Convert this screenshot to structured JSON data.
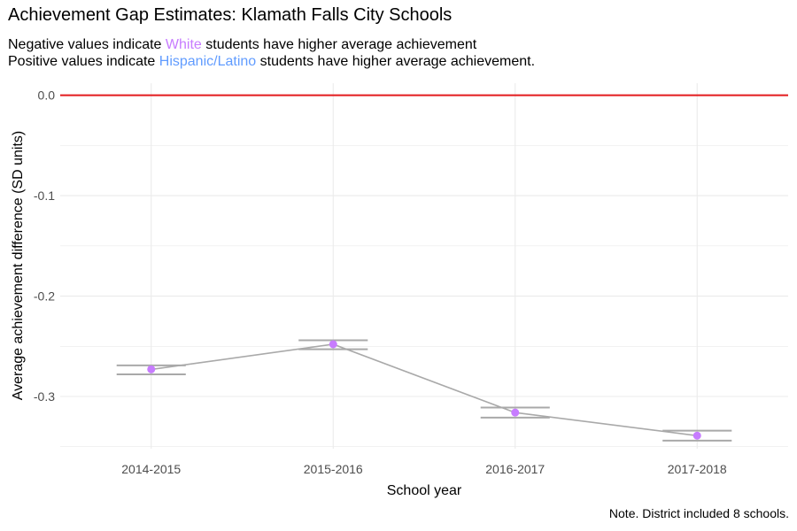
{
  "chart_data": {
    "type": "line",
    "title": "Achievement Gap Estimates: Klamath Falls City Schools",
    "subtitle": {
      "line1": {
        "before": "Negative values indicate ",
        "highlight": "White",
        "after": " students have higher average achievement"
      },
      "line2": {
        "before": "Positive values indicate ",
        "highlight": "Hispanic/Latino",
        "after": " students have higher average achievement."
      }
    },
    "xlabel": "School year",
    "ylabel": "Average achievement difference (SD units)",
    "categories": [
      "2014-2015",
      "2015-2016",
      "2016-2017",
      "2017-2018"
    ],
    "series": [
      {
        "values": [
          -0.273,
          -0.248,
          -0.316,
          -0.339
        ],
        "error_low": [
          -0.278,
          -0.253,
          -0.321,
          -0.344
        ],
        "error_high": [
          -0.269,
          -0.244,
          -0.311,
          -0.334
        ]
      }
    ],
    "yticks": [
      0.0,
      -0.1,
      -0.2,
      -0.3
    ],
    "ytick_labels": [
      "0.0",
      "-0.1",
      "-0.2",
      "-0.3"
    ],
    "ylim": [
      -0.352,
      0.012
    ],
    "reference_line": 0.0,
    "grid": true,
    "legend": "none",
    "note": "Note. District included 8 schools."
  },
  "colors": {
    "white": "#C77CFF",
    "hispanic": "#619CFF",
    "point": "#C77CFF",
    "line": "#A9A9A9",
    "reference": "#E31A1C",
    "grid": "#EBEBEB"
  }
}
